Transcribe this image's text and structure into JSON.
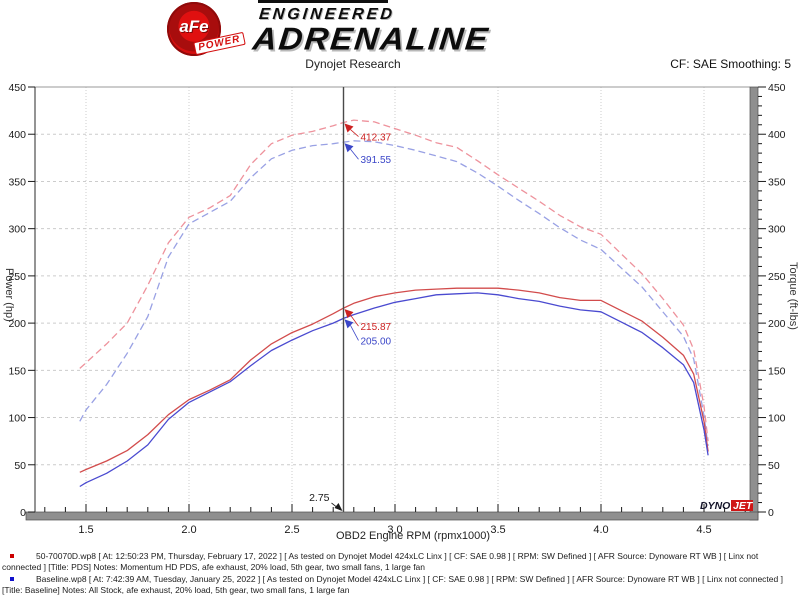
{
  "header": {
    "brand_line1": "ENGINEERED",
    "brand_line2": "ADRENALINE",
    "badge_text": "aFe",
    "badge_sub": "POWER",
    "subtitle": "Dynojet Research",
    "smoothing": "CF: SAE Smoothing: 5"
  },
  "chart_data": {
    "type": "line",
    "title": "",
    "xlabel": "OBD2 Engine RPM (rpmx1000)",
    "ylabel_left": "Power (hp)",
    "ylabel_right": "Torque (ft-lbs)",
    "grid": true,
    "x_axis": {
      "min": 1.5,
      "max": 4.5,
      "major_step": 0.5,
      "minor_step": 0.1,
      "plot_min": 1.3,
      "plot_max": 4.7
    },
    "y_axis_left": {
      "min": 0,
      "max": 450,
      "major_step": 50
    },
    "y_axis_right": {
      "min": 0,
      "max": 450,
      "major_step": 50,
      "minor_step": 10
    },
    "cursor": {
      "x": 2.75,
      "label": "2.75"
    },
    "watermark": {
      "part1": "DYNO",
      "part2": "JET"
    },
    "x": [
      1.47,
      1.5,
      1.6,
      1.7,
      1.8,
      1.9,
      2.0,
      2.1,
      2.2,
      2.3,
      2.4,
      2.5,
      2.6,
      2.7,
      2.75,
      2.8,
      2.9,
      3.0,
      3.1,
      3.2,
      3.3,
      3.4,
      3.5,
      3.6,
      3.7,
      3.8,
      3.9,
      4.0,
      4.1,
      4.2,
      4.3,
      4.4,
      4.45,
      4.5,
      4.52
    ],
    "series": [
      {
        "name": "PDS Torque",
        "unit": "ft-lbs",
        "style": "dashed",
        "color": "#ee929c",
        "label_color": "#cc2222",
        "cursor_label": "412.37",
        "values": [
          152,
          158,
          178,
          200,
          240,
          285,
          312,
          322,
          335,
          368,
          390,
          399,
          403,
          409,
          412.37,
          415,
          413,
          406,
          399,
          391,
          386,
          372,
          357,
          343,
          329,
          314,
          302,
          294,
          273,
          252,
          226,
          198,
          172,
          112,
          75
        ]
      },
      {
        "name": "Baseline Torque",
        "unit": "ft-lbs",
        "style": "dashed",
        "color": "#99a1e4",
        "label_color": "#3b46c8",
        "cursor_label": "391.55",
        "values": [
          96,
          108,
          135,
          168,
          207,
          270,
          305,
          317,
          329,
          354,
          374,
          383,
          388,
          390,
          391.55,
          393,
          392,
          388,
          383,
          377,
          371,
          359,
          345,
          330,
          316,
          301,
          288,
          278,
          258,
          238,
          212,
          186,
          162,
          102,
          70
        ]
      },
      {
        "name": "PDS Power",
        "unit": "hp",
        "style": "solid",
        "color": "#d24c4c",
        "label_color": "#cc2222",
        "cursor_label": "215.87",
        "values": [
          42,
          45,
          54,
          65,
          82,
          103,
          119,
          129,
          140,
          161,
          178,
          190,
          199,
          210,
          215.87,
          221,
          228,
          232,
          235,
          236,
          237,
          237,
          237,
          235,
          232,
          227,
          224,
          224,
          213,
          202,
          185,
          166,
          146,
          96,
          64
        ]
      },
      {
        "name": "Baseline Power",
        "unit": "hp",
        "style": "solid",
        "color": "#4a4ad0",
        "label_color": "#3b46c8",
        "cursor_label": "205.00",
        "values": [
          27,
          31,
          41,
          54,
          71,
          98,
          116,
          127,
          138,
          155,
          171,
          182,
          192,
          200,
          205.0,
          209,
          216,
          222,
          226,
          230,
          231,
          232,
          230,
          226,
          223,
          218,
          214,
          212,
          201,
          190,
          174,
          156,
          137,
          87,
          60
        ]
      }
    ]
  },
  "legend": [
    {
      "bullet_color": "#cc0000",
      "text": "50-70070D.wp8 [ At: 12:50:23 PM, Thursday, February 17, 2022 ] [ As tested on Dynojet Model 424xLC Linx ] [ CF: SAE 0.98 ] [ RPM: SW Defined ] [ AFR Source: Dynoware RT WB ] [ Linx not connected ] [Title: PDS]  Notes: Momentum HD PDS, afe exhaust, 20% load, 5th gear, two small fans, 1 large fan"
    },
    {
      "bullet_color": "#1111cc",
      "text": "Baseline.wp8 [ At: 7:42:39 AM, Tuesday, January 25, 2022 ] [ As tested on Dynojet Model 424xLC Linx ] [ CF: SAE 0.98 ] [ RPM: SW Defined ] [ AFR Source: Dynoware RT WB ] [ Linx not connected ] [Title: Baseline]  Notes: All Stock, afe exhaust, 20% load, 5th gear, two small fans, 1 large fan"
    }
  ]
}
